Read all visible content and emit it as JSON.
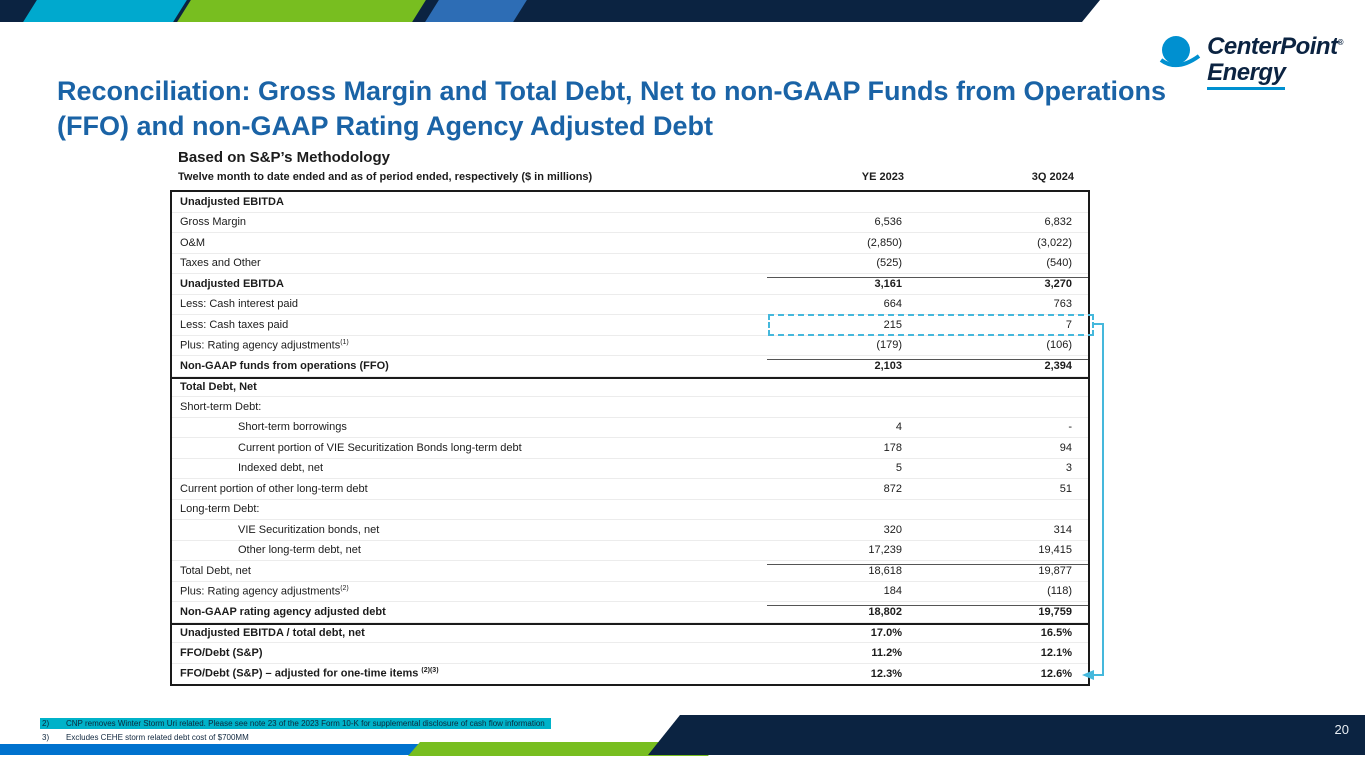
{
  "colors": {
    "navy": "#0B2341",
    "title_blue": "#1A63A6",
    "accent_teal": "#00A9CE",
    "accent_green": "#78BE20",
    "accent_blue": "#0072CE",
    "connector_teal": "#45B8DC",
    "footnote_highlight": "#00B2C9"
  },
  "logo": {
    "name_line1": "CenterPoint",
    "registered": "®",
    "name_line2": "Energy"
  },
  "title": {
    "lines": [
      "Reconciliation: Gross Margin and Total Debt, Net to non-GAAP Funds from Operations",
      "(FFO) and non-GAAP Rating Agency Adjusted Debt"
    ]
  },
  "subtitle": "Based on S&P’s Methodology",
  "table": {
    "header": {
      "label": "Twelve month to date ended and as of period ended, respectively ($ in millions)",
      "col1": "YE 2023",
      "col2": "3Q 2024"
    },
    "rows": [
      {
        "label": "Unadjusted EBITDA",
        "v1": "",
        "v2": "",
        "bold": true
      },
      {
        "label": "Gross Margin",
        "v1": "6,536",
        "v2": "6,832"
      },
      {
        "label": "O&M",
        "v1": "(2,850)",
        "v2": "(3,022)"
      },
      {
        "label": "Taxes and Other",
        "v1": "(525)",
        "v2": "(540)"
      },
      {
        "label": "Unadjusted EBITDA",
        "v1": "3,161",
        "v2": "3,270",
        "bold": true,
        "topline": true
      },
      {
        "label": "Less: Cash interest paid",
        "v1": "664",
        "v2": "763"
      },
      {
        "label": "Less: Cash taxes paid",
        "v1": "215",
        "v2": "7",
        "highlightBox": true
      },
      {
        "label": "Plus: Rating agency adjustments",
        "sup": "(1)",
        "v1": "(179)",
        "v2": "(106)"
      },
      {
        "label": "Non-GAAP funds from operations (FFO)",
        "v1": "2,103",
        "v2": "2,394",
        "bold": true,
        "topline": true
      },
      {
        "label": "Total Debt, Net",
        "v1": "",
        "v2": "",
        "bold": true,
        "thickTop": true
      },
      {
        "label": "Short-term Debt:",
        "v1": "",
        "v2": ""
      },
      {
        "label": "Short-term borrowings",
        "v1": "4",
        "v2": "-",
        "indent": true
      },
      {
        "label": "Current portion of VIE Securitization Bonds long-term debt",
        "v1": "178",
        "v2": "94",
        "indent": true
      },
      {
        "label": "Indexed debt, net",
        "v1": "5",
        "v2": "3",
        "indent": true
      },
      {
        "label": "Current portion of other long-term debt",
        "v1": "872",
        "v2": "51"
      },
      {
        "label": "Long-term Debt:",
        "v1": "",
        "v2": ""
      },
      {
        "label": "VIE Securitization bonds, net",
        "v1": "320",
        "v2": "314",
        "indent": true
      },
      {
        "label": "Other long-term debt, net",
        "v1": "17,239",
        "v2": "19,415",
        "indent": true
      },
      {
        "label": "Total Debt, net",
        "v1": "18,618",
        "v2": "19,877",
        "topline": true
      },
      {
        "label": "Plus: Rating agency adjustments",
        "sup": "(2)",
        "v1": "184",
        "v2": "(118)"
      },
      {
        "label": "Non-GAAP rating agency adjusted debt",
        "v1": "18,802",
        "v2": "19,759",
        "bold": true,
        "topline": true
      },
      {
        "label": "Unadjusted EBITDA / total debt, net",
        "v1": "17.0%",
        "v2": "16.5%",
        "bold": true,
        "thickTop": true
      },
      {
        "label": "FFO/Debt (S&P)",
        "v1": "11.2%",
        "v2": "12.1%",
        "bold": true
      },
      {
        "label": "FFO/Debt (S&P) – adjusted for one-time items ",
        "sup": "(2)(3)",
        "v1": "12.3%",
        "v2": "12.6%",
        "bold": true
      }
    ]
  },
  "footnotes": [
    {
      "num": "2)",
      "text": "CNP removes Winter Storm Uri related. Please see note 23 of the 2023 Form 10-K for supplemental disclosure of cash flow information",
      "highlighted": true
    },
    {
      "num": "3)",
      "text": "Excludes CEHE storm related debt cost of $700MM",
      "highlighted": false
    }
  ],
  "page_number": "20"
}
